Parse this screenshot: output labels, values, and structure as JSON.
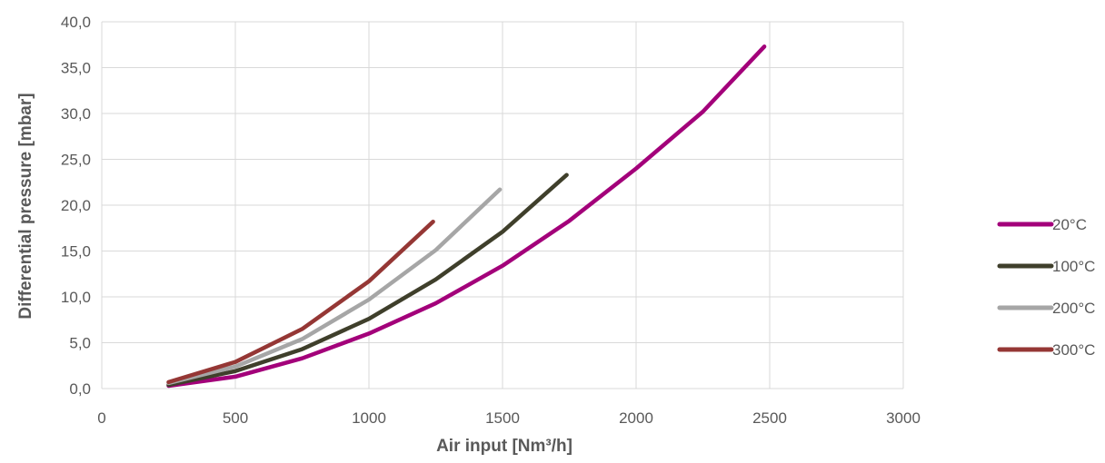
{
  "chart_data": {
    "type": "line",
    "xlabel": "Air input [Nm³/h]",
    "ylabel": "Differential pressure [mbar]",
    "xlim": [
      0,
      3000
    ],
    "ylim": [
      0,
      40
    ],
    "x_ticks": [
      "0",
      "500",
      "1000",
      "1500",
      "2000",
      "2500",
      "3000"
    ],
    "y_ticks": [
      "0,0",
      "5,0",
      "10,0",
      "15,0",
      "20,0",
      "25,0",
      "30,0",
      "35,0",
      "40,0"
    ],
    "grid": true,
    "legend_position": "right",
    "series": [
      {
        "name": "20°C",
        "color": "#a3007a",
        "points": [
          [
            250,
            0.3
          ],
          [
            500,
            1.3
          ],
          [
            750,
            3.3
          ],
          [
            1000,
            6.0
          ],
          [
            1250,
            9.3
          ],
          [
            1500,
            13.4
          ],
          [
            1750,
            18.3
          ],
          [
            2000,
            24.0
          ],
          [
            2250,
            30.2
          ],
          [
            2480,
            37.3
          ]
        ]
      },
      {
        "name": "100°C",
        "color": "#3f3f2b",
        "points": [
          [
            250,
            0.4
          ],
          [
            500,
            1.9
          ],
          [
            750,
            4.3
          ],
          [
            1000,
            7.6
          ],
          [
            1250,
            11.9
          ],
          [
            1500,
            17.1
          ],
          [
            1740,
            23.3
          ]
        ]
      },
      {
        "name": "200°C",
        "color": "#a6a6a6",
        "points": [
          [
            250,
            0.6
          ],
          [
            500,
            2.4
          ],
          [
            750,
            5.4
          ],
          [
            1000,
            9.7
          ],
          [
            1250,
            15.1
          ],
          [
            1490,
            21.7
          ]
        ]
      },
      {
        "name": "300°C",
        "color": "#953735",
        "points": [
          [
            250,
            0.7
          ],
          [
            500,
            2.9
          ],
          [
            750,
            6.5
          ],
          [
            1000,
            11.7
          ],
          [
            1240,
            18.2
          ]
        ]
      }
    ]
  }
}
